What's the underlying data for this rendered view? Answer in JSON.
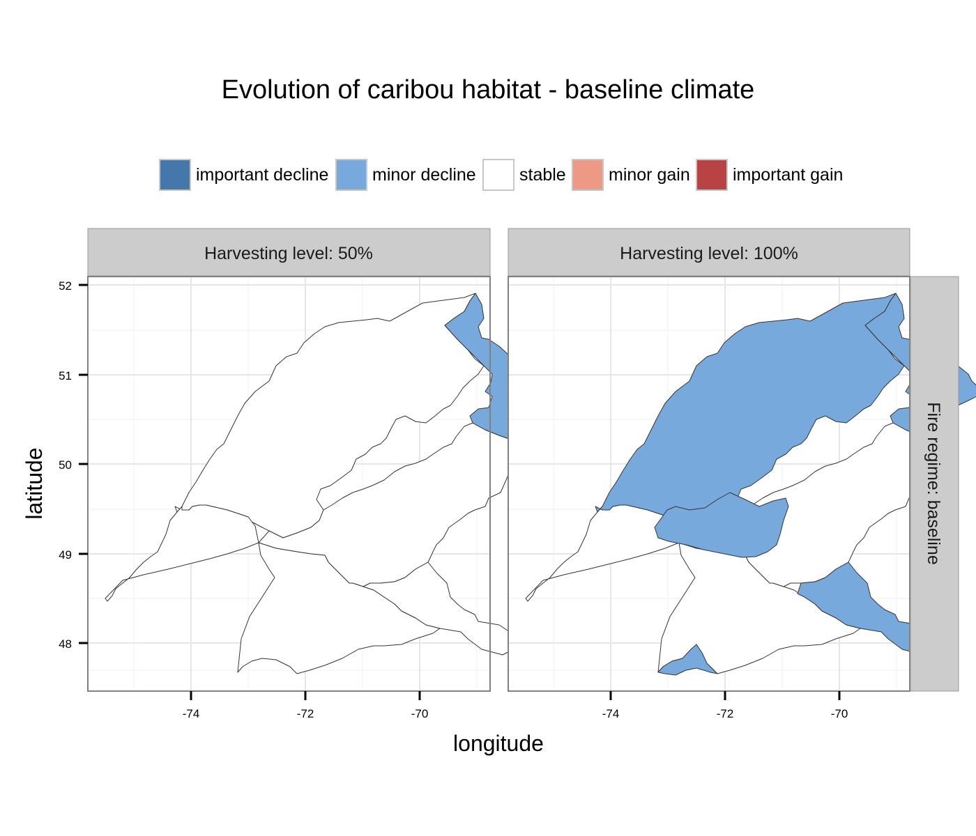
{
  "title": "Evolution of caribou habitat - baseline climate",
  "legend": {
    "items": [
      {
        "label": "important decline",
        "color": "#4577AA"
      },
      {
        "label": "minor decline",
        "color": "#78A9DC"
      },
      {
        "label": "stable",
        "color": "#FFFFFF"
      },
      {
        "label": "minor gain",
        "color": "#EE9886"
      },
      {
        "label": "important gain",
        "color": "#B94344"
      }
    ]
  },
  "axes": {
    "xlabel": "longitude",
    "ylabel": "latitude",
    "x_ticks": [
      "-74",
      "-72",
      "-70"
    ],
    "y_ticks": [
      "52",
      "51",
      "50",
      "49",
      "48"
    ]
  },
  "panels": {
    "left": {
      "label": "Harvesting level: 50%"
    },
    "right": {
      "label": "Harvesting level: 100%"
    },
    "row": {
      "label": "Fire regime: baseline"
    }
  },
  "chart_data": {
    "type": "map",
    "title": "Evolution of caribou habitat - baseline climate",
    "xlabel": "longitude",
    "ylabel": "latitude",
    "xlim": [
      -75.8,
      -68.8
    ],
    "ylim": [
      47.5,
      52.1
    ],
    "x_ticks": [
      -74,
      -72,
      -70
    ],
    "y_ticks": [
      48,
      49,
      50,
      51,
      52
    ],
    "grid": true,
    "legend_position": "top",
    "legend": [
      "important decline",
      "minor decline",
      "stable",
      "minor gain",
      "important gain"
    ],
    "facets": [
      {
        "column": "Harvesting level: 50%",
        "row": "Fire regime: baseline",
        "regions_by_class": {
          "minor decline": 1,
          "stable": 5
        }
      },
      {
        "column": "Harvesting level: 100%",
        "row": "Fire regime: baseline",
        "regions_by_class": {
          "minor decline": 3,
          "stable": 5
        }
      }
    ]
  }
}
